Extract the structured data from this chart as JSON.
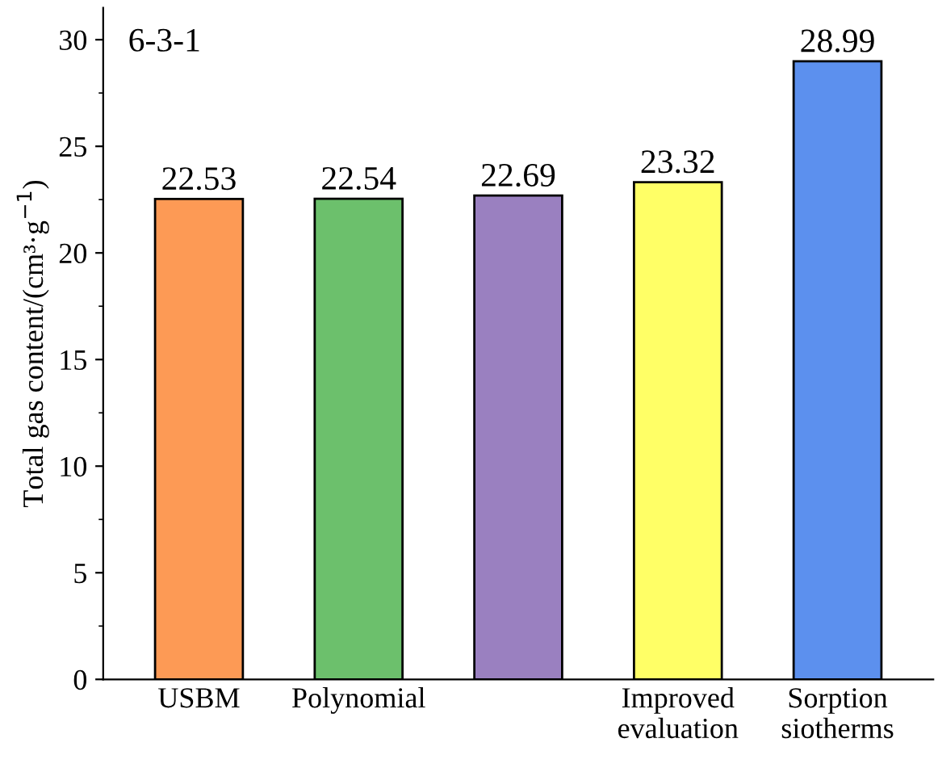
{
  "chart_data": {
    "type": "bar",
    "categories": [
      "USBM",
      "Polynomial",
      null,
      "Improved\nevaluation",
      "Sorption\nsiotherms"
    ],
    "values": [
      22.53,
      22.54,
      22.69,
      23.32,
      28.99
    ],
    "colors": [
      "#fd9a55",
      "#6cc06c",
      "#9a80c0",
      "#ffff66",
      "#5c90ee"
    ],
    "data_labels": true,
    "ylabel": "Total gas content/(cm³·g$^{−1}$)",
    "ylim": [
      0,
      31.5
    ],
    "yticks": [
      0,
      5,
      10,
      15,
      20,
      25,
      30
    ],
    "annotations": [
      "6-3-1"
    ],
    "grid": false,
    "legend": false
  }
}
